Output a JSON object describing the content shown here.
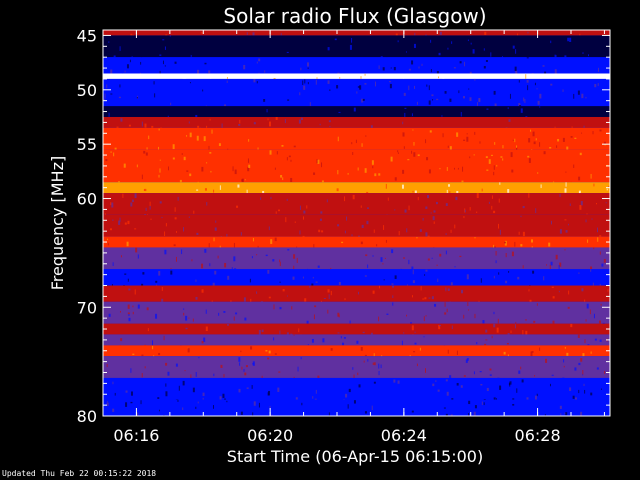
{
  "chart_data": {
    "type": "heatmap",
    "title": "Solar radio Flux (Glasgow)",
    "xlabel": "Start Time (06-Apr-15 06:15:00)",
    "ylabel": "Frequency [MHz]",
    "x_ticks": [
      "06:16",
      "06:20",
      "06:24",
      "06:28"
    ],
    "y_ticks": [
      45,
      50,
      55,
      60,
      70,
      80
    ],
    "x_range": [
      "06:15:00",
      "06:30:10"
    ],
    "y_range": [
      44.5,
      80
    ],
    "colormap": [
      "#000040",
      "#0010ff",
      "#6030a0",
      "#c01010",
      "#ff3000",
      "#ffa000",
      "#ffffff"
    ],
    "bands": [
      {
        "from": 44.5,
        "to": 45.0,
        "level": 3
      },
      {
        "from": 45.0,
        "to": 47.0,
        "level": 0
      },
      {
        "from": 47.0,
        "to": 48.5,
        "level": 1
      },
      {
        "from": 48.5,
        "to": 49.0,
        "level": 6
      },
      {
        "from": 49.0,
        "to": 51.5,
        "level": 1
      },
      {
        "from": 51.5,
        "to": 52.5,
        "level": 0
      },
      {
        "from": 52.5,
        "to": 53.5,
        "level": 3
      },
      {
        "from": 53.5,
        "to": 55.5,
        "level": 4
      },
      {
        "from": 55.5,
        "to": 58.5,
        "level": 4
      },
      {
        "from": 58.5,
        "to": 59.5,
        "level": 5
      },
      {
        "from": 59.5,
        "to": 61.5,
        "level": 3
      },
      {
        "from": 61.5,
        "to": 63.5,
        "level": 3
      },
      {
        "from": 63.5,
        "to": 64.5,
        "level": 4
      },
      {
        "from": 64.5,
        "to": 66.5,
        "level": 2
      },
      {
        "from": 66.5,
        "to": 68.0,
        "level": 1
      },
      {
        "from": 68.0,
        "to": 69.5,
        "level": 3
      },
      {
        "from": 69.5,
        "to": 71.5,
        "level": 2
      },
      {
        "from": 71.5,
        "to": 72.5,
        "level": 3
      },
      {
        "from": 72.5,
        "to": 73.5,
        "level": 2
      },
      {
        "from": 73.5,
        "to": 74.5,
        "level": 4
      },
      {
        "from": 74.5,
        "to": 76.5,
        "level": 2
      },
      {
        "from": 76.5,
        "to": 78.5,
        "level": 1
      },
      {
        "from": 78.5,
        "to": 80.0,
        "level": 1
      }
    ]
  },
  "footer": "Updated Thu Feb 22 00:15:22 2018"
}
